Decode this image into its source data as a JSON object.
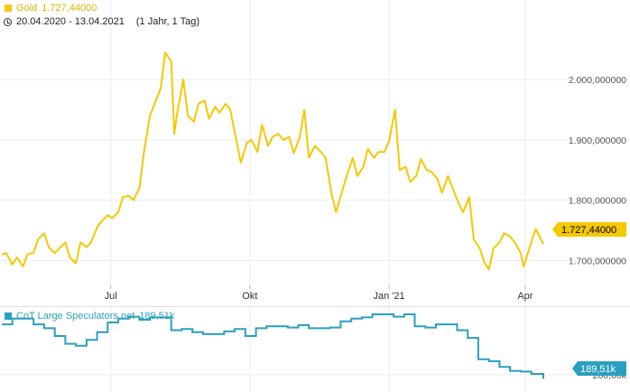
{
  "colors": {
    "gold": "#F5C800",
    "cot": "#2A9FBF",
    "grid": "#ececec"
  },
  "top_legend": {
    "name": "Gold",
    "value": "1.727,44000",
    "range": "20.04.2020 - 13.04.2021",
    "period": "(1 Jahr, 1 Tag)"
  },
  "bottom_legend": {
    "name": "CoT Large Speculators net",
    "value": "189,51k"
  },
  "price_badge": "1.727,44000",
  "cot_badge": "189,51k",
  "cot_tick": "200,00k",
  "chart_data": [
    {
      "type": "line",
      "series": [
        {
          "name": "Gold",
          "color": "#F5C800"
        }
      ],
      "y_ticks": [
        "2.000,000000",
        "1.900,000000",
        "1.800,000000",
        "1.700,000000"
      ],
      "y_tick_values": [
        2000,
        1900,
        1800,
        1700
      ],
      "x_ticks": [
        "Jul",
        "Okt",
        "Jan '21",
        "Apr"
      ],
      "x_tick_dates": [
        "2020-07-01",
        "2020-10-01",
        "2021-01-01",
        "2021-04-01"
      ],
      "ylim": [
        1660,
        2090
      ],
      "xlim": [
        "2020-04-20",
        "2021-04-13"
      ],
      "points": [
        [
          "2020-04-20",
          1710
        ],
        [
          "2020-04-23",
          1712
        ],
        [
          "2020-04-27",
          1693
        ],
        [
          "2020-04-30",
          1705
        ],
        [
          "2020-05-04",
          1690
        ],
        [
          "2020-05-07",
          1710
        ],
        [
          "2020-05-11",
          1713
        ],
        [
          "2020-05-14",
          1735
        ],
        [
          "2020-05-18",
          1745
        ],
        [
          "2020-05-21",
          1722
        ],
        [
          "2020-05-25",
          1712
        ],
        [
          "2020-05-28",
          1720
        ],
        [
          "2020-06-01",
          1730
        ],
        [
          "2020-06-04",
          1705
        ],
        [
          "2020-06-08",
          1695
        ],
        [
          "2020-06-11",
          1730
        ],
        [
          "2020-06-15",
          1722
        ],
        [
          "2020-06-18",
          1730
        ],
        [
          "2020-06-22",
          1755
        ],
        [
          "2020-06-25",
          1765
        ],
        [
          "2020-06-29",
          1775
        ],
        [
          "2020-07-02",
          1770
        ],
        [
          "2020-07-06",
          1780
        ],
        [
          "2020-07-09",
          1805
        ],
        [
          "2020-07-13",
          1807
        ],
        [
          "2020-07-16",
          1800
        ],
        [
          "2020-07-20",
          1820
        ],
        [
          "2020-07-23",
          1880
        ],
        [
          "2020-07-27",
          1940
        ],
        [
          "2020-07-30",
          1960
        ],
        [
          "2020-08-03",
          1985
        ],
        [
          "2020-08-06",
          2045
        ],
        [
          "2020-08-10",
          2030
        ],
        [
          "2020-08-12",
          1910
        ],
        [
          "2020-08-14",
          1945
        ],
        [
          "2020-08-18",
          2000
        ],
        [
          "2020-08-21",
          1940
        ],
        [
          "2020-08-25",
          1930
        ],
        [
          "2020-08-28",
          1960
        ],
        [
          "2020-09-01",
          1965
        ],
        [
          "2020-09-04",
          1935
        ],
        [
          "2020-09-08",
          1955
        ],
        [
          "2020-09-11",
          1945
        ],
        [
          "2020-09-15",
          1960
        ],
        [
          "2020-09-18",
          1950
        ],
        [
          "2020-09-22",
          1900
        ],
        [
          "2020-09-25",
          1862
        ],
        [
          "2020-09-29",
          1895
        ],
        [
          "2020-10-02",
          1900
        ],
        [
          "2020-10-06",
          1880
        ],
        [
          "2020-10-09",
          1925
        ],
        [
          "2020-10-13",
          1890
        ],
        [
          "2020-10-16",
          1905
        ],
        [
          "2020-10-20",
          1910
        ],
        [
          "2020-10-23",
          1900
        ],
        [
          "2020-10-27",
          1905
        ],
        [
          "2020-10-30",
          1878
        ],
        [
          "2020-11-03",
          1905
        ],
        [
          "2020-11-06",
          1950
        ],
        [
          "2020-11-09",
          1870
        ],
        [
          "2020-11-13",
          1890
        ],
        [
          "2020-11-17",
          1880
        ],
        [
          "2020-11-20",
          1870
        ],
        [
          "2020-11-24",
          1810
        ],
        [
          "2020-11-27",
          1780
        ],
        [
          "2020-12-01",
          1815
        ],
        [
          "2020-12-04",
          1840
        ],
        [
          "2020-12-08",
          1870
        ],
        [
          "2020-12-11",
          1840
        ],
        [
          "2020-12-15",
          1855
        ],
        [
          "2020-12-18",
          1885
        ],
        [
          "2020-12-22",
          1870
        ],
        [
          "2020-12-25",
          1880
        ],
        [
          "2020-12-29",
          1880
        ],
        [
          "2021-01-01",
          1898
        ],
        [
          "2021-01-05",
          1950
        ],
        [
          "2021-01-08",
          1850
        ],
        [
          "2021-01-12",
          1855
        ],
        [
          "2021-01-15",
          1830
        ],
        [
          "2021-01-19",
          1840
        ],
        [
          "2021-01-22",
          1868
        ],
        [
          "2021-01-26",
          1850
        ],
        [
          "2021-01-29",
          1847
        ],
        [
          "2021-02-02",
          1835
        ],
        [
          "2021-02-05",
          1812
        ],
        [
          "2021-02-09",
          1840
        ],
        [
          "2021-02-12",
          1820
        ],
        [
          "2021-02-16",
          1795
        ],
        [
          "2021-02-19",
          1780
        ],
        [
          "2021-02-23",
          1805
        ],
        [
          "2021-02-26",
          1735
        ],
        [
          "2021-03-02",
          1720
        ],
        [
          "2021-03-05",
          1697
        ],
        [
          "2021-03-08",
          1685
        ],
        [
          "2021-03-11",
          1720
        ],
        [
          "2021-03-15",
          1730
        ],
        [
          "2021-03-18",
          1745
        ],
        [
          "2021-03-22",
          1740
        ],
        [
          "2021-03-25",
          1730
        ],
        [
          "2021-03-29",
          1712
        ],
        [
          "2021-03-31",
          1690
        ],
        [
          "2021-04-05",
          1730
        ],
        [
          "2021-04-08",
          1752
        ],
        [
          "2021-04-13",
          1727
        ]
      ]
    },
    {
      "type": "line",
      "series": [
        {
          "name": "CoT Large Speculators net",
          "color": "#2A9FBF"
        }
      ],
      "y_ticks": [
        "200,00k"
      ],
      "y_tick_values": [
        200
      ],
      "ylim": [
        160,
        370
      ],
      "points": [
        [
          "2020-04-20",
          330
        ],
        [
          "2020-04-27",
          345
        ],
        [
          "2020-05-04",
          345
        ],
        [
          "2020-05-11",
          330
        ],
        [
          "2020-05-18",
          320
        ],
        [
          "2020-05-25",
          300
        ],
        [
          "2020-06-01",
          280
        ],
        [
          "2020-06-08",
          275
        ],
        [
          "2020-06-15",
          290
        ],
        [
          "2020-06-22",
          310
        ],
        [
          "2020-06-29",
          335
        ],
        [
          "2020-07-06",
          345
        ],
        [
          "2020-07-13",
          350
        ],
        [
          "2020-07-20",
          342
        ],
        [
          "2020-07-27",
          348
        ],
        [
          "2020-08-03",
          348
        ],
        [
          "2020-08-10",
          315
        ],
        [
          "2020-08-17",
          318
        ],
        [
          "2020-08-24",
          310
        ],
        [
          "2020-08-31",
          305
        ],
        [
          "2020-09-07",
          305
        ],
        [
          "2020-09-14",
          312
        ],
        [
          "2020-09-21",
          318
        ],
        [
          "2020-09-28",
          300
        ],
        [
          "2020-10-05",
          320
        ],
        [
          "2020-10-12",
          325
        ],
        [
          "2020-10-19",
          325
        ],
        [
          "2020-10-26",
          322
        ],
        [
          "2020-11-02",
          328
        ],
        [
          "2020-11-09",
          320
        ],
        [
          "2020-11-16",
          320
        ],
        [
          "2020-11-23",
          322
        ],
        [
          "2020-11-30",
          338
        ],
        [
          "2020-12-07",
          345
        ],
        [
          "2020-12-14",
          348
        ],
        [
          "2020-12-21",
          356
        ],
        [
          "2020-12-28",
          356
        ],
        [
          "2021-01-04",
          350
        ],
        [
          "2021-01-11",
          356
        ],
        [
          "2021-01-18",
          325
        ],
        [
          "2021-01-25",
          322
        ],
        [
          "2021-02-01",
          330
        ],
        [
          "2021-02-08",
          330
        ],
        [
          "2021-02-15",
          315
        ],
        [
          "2021-02-22",
          295
        ],
        [
          "2021-03-01",
          240
        ],
        [
          "2021-03-08",
          235
        ],
        [
          "2021-03-15",
          220
        ],
        [
          "2021-03-22",
          210
        ],
        [
          "2021-03-29",
          208
        ],
        [
          "2021-04-05",
          202
        ],
        [
          "2021-04-13",
          189.51
        ]
      ]
    }
  ]
}
